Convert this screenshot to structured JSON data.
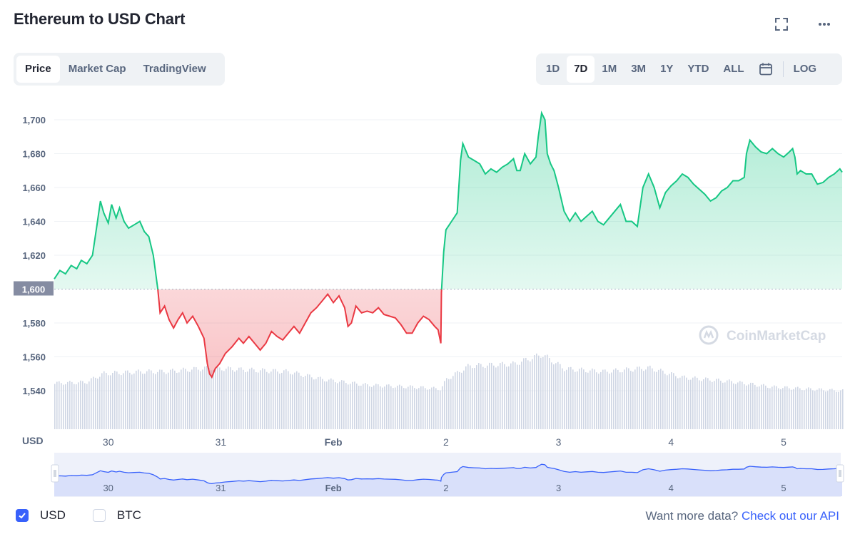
{
  "header": {
    "title": "Ethereum to USD Chart",
    "fullscreen_icon": "expand-icon",
    "more_icon": "more-dots-icon"
  },
  "view_tabs": [
    {
      "label": "Price",
      "active": true
    },
    {
      "label": "Market Cap",
      "active": false
    },
    {
      "label": "TradingView",
      "active": false
    }
  ],
  "ranges": [
    {
      "label": "1D",
      "active": false
    },
    {
      "label": "7D",
      "active": true
    },
    {
      "label": "1M",
      "active": false
    },
    {
      "label": "3M",
      "active": false
    },
    {
      "label": "1Y",
      "active": false
    },
    {
      "label": "YTD",
      "active": false
    },
    {
      "label": "ALL",
      "active": false
    }
  ],
  "calendar_icon": "calendar-icon",
  "log_label": "LOG",
  "watermark": "CoinMarketCap",
  "footer": {
    "usd_label": "USD",
    "usd_checked": true,
    "btc_label": "BTC",
    "btc_checked": false,
    "more_data_text": "Want more data?",
    "api_link": "Check out our API"
  },
  "colors": {
    "up": "#16c784",
    "down": "#ea3943",
    "accent": "#3861fb",
    "volume": "#cfd6e4"
  },
  "chart_data": {
    "type": "line",
    "currency_label": "USD",
    "baseline": 1600,
    "baseline_label": "1,600",
    "ylim": [
      1525,
      1711
    ],
    "y_ticks": [
      1540,
      1560,
      1580,
      1600,
      1620,
      1640,
      1660,
      1680,
      1700
    ],
    "y_tick_labels": [
      "1,540",
      "1,560",
      "1,580",
      "1,600",
      "1,620",
      "1,640",
      "1,660",
      "1,680",
      "1,700"
    ],
    "xlim": [
      29.52,
      36.52
    ],
    "x_ticks": [
      {
        "x": 30,
        "label": "30"
      },
      {
        "x": 31,
        "label": "31"
      },
      {
        "x": 32,
        "label": "Feb"
      },
      {
        "x": 33,
        "label": "2"
      },
      {
        "x": 34,
        "label": "3"
      },
      {
        "x": 35,
        "label": "4"
      },
      {
        "x": 36,
        "label": "5"
      }
    ],
    "price": [
      [
        29.52,
        1606
      ],
      [
        29.57,
        1611
      ],
      [
        29.62,
        1609
      ],
      [
        29.67,
        1614
      ],
      [
        29.72,
        1612
      ],
      [
        29.76,
        1617
      ],
      [
        29.81,
        1615
      ],
      [
        29.86,
        1620
      ],
      [
        29.9,
        1638
      ],
      [
        29.93,
        1652
      ],
      [
        29.96,
        1645
      ],
      [
        30.0,
        1639
      ],
      [
        30.03,
        1650
      ],
      [
        30.07,
        1642
      ],
      [
        30.1,
        1648
      ],
      [
        30.14,
        1640
      ],
      [
        30.18,
        1636
      ],
      [
        30.23,
        1638
      ],
      [
        30.28,
        1640
      ],
      [
        30.32,
        1634
      ],
      [
        30.36,
        1631
      ],
      [
        30.4,
        1620
      ],
      [
        30.44,
        1600
      ],
      [
        30.46,
        1586
      ],
      [
        30.5,
        1590
      ],
      [
        30.54,
        1582
      ],
      [
        30.58,
        1577
      ],
      [
        30.62,
        1582
      ],
      [
        30.66,
        1586
      ],
      [
        30.7,
        1580
      ],
      [
        30.75,
        1584
      ],
      [
        30.8,
        1578
      ],
      [
        30.85,
        1571
      ],
      [
        30.88,
        1556
      ],
      [
        30.9,
        1550
      ],
      [
        30.92,
        1548
      ],
      [
        30.95,
        1553
      ],
      [
        30.99,
        1556
      ],
      [
        31.04,
        1562
      ],
      [
        31.1,
        1566
      ],
      [
        31.16,
        1571
      ],
      [
        31.2,
        1568
      ],
      [
        31.25,
        1572
      ],
      [
        31.3,
        1568
      ],
      [
        31.35,
        1564
      ],
      [
        31.4,
        1568
      ],
      [
        31.45,
        1575
      ],
      [
        31.5,
        1572
      ],
      [
        31.55,
        1570
      ],
      [
        31.6,
        1574
      ],
      [
        31.65,
        1578
      ],
      [
        31.7,
        1574
      ],
      [
        31.75,
        1580
      ],
      [
        31.8,
        1586
      ],
      [
        31.85,
        1589
      ],
      [
        31.9,
        1593
      ],
      [
        31.95,
        1597
      ],
      [
        32.0,
        1592
      ],
      [
        32.05,
        1596
      ],
      [
        32.1,
        1589
      ],
      [
        32.13,
        1578
      ],
      [
        32.16,
        1580
      ],
      [
        32.2,
        1590
      ],
      [
        32.25,
        1586
      ],
      [
        32.3,
        1587
      ],
      [
        32.35,
        1586
      ],
      [
        32.4,
        1589
      ],
      [
        32.45,
        1585
      ],
      [
        32.5,
        1584
      ],
      [
        32.55,
        1583
      ],
      [
        32.6,
        1579
      ],
      [
        32.65,
        1574
      ],
      [
        32.7,
        1574
      ],
      [
        32.75,
        1580
      ],
      [
        32.8,
        1584
      ],
      [
        32.85,
        1582
      ],
      [
        32.9,
        1578
      ],
      [
        32.93,
        1576
      ],
      [
        32.955,
        1568
      ],
      [
        32.96,
        1598
      ],
      [
        32.98,
        1622
      ],
      [
        33.0,
        1635
      ],
      [
        33.05,
        1640
      ],
      [
        33.1,
        1645
      ],
      [
        33.13,
        1676
      ],
      [
        33.15,
        1686
      ],
      [
        33.2,
        1678
      ],
      [
        33.25,
        1676
      ],
      [
        33.3,
        1674
      ],
      [
        33.35,
        1668
      ],
      [
        33.4,
        1671
      ],
      [
        33.45,
        1669
      ],
      [
        33.5,
        1672
      ],
      [
        33.55,
        1674
      ],
      [
        33.6,
        1677
      ],
      [
        33.63,
        1670
      ],
      [
        33.66,
        1670
      ],
      [
        33.7,
        1680
      ],
      [
        33.75,
        1674
      ],
      [
        33.8,
        1678
      ],
      [
        33.82,
        1690
      ],
      [
        33.85,
        1704
      ],
      [
        33.88,
        1700
      ],
      [
        33.9,
        1680
      ],
      [
        33.93,
        1674
      ],
      [
        33.96,
        1670
      ],
      [
        34.0,
        1660
      ],
      [
        34.05,
        1646
      ],
      [
        34.1,
        1640
      ],
      [
        34.15,
        1645
      ],
      [
        34.2,
        1640
      ],
      [
        34.25,
        1643
      ],
      [
        34.3,
        1646
      ],
      [
        34.35,
        1640
      ],
      [
        34.4,
        1638
      ],
      [
        34.45,
        1642
      ],
      [
        34.5,
        1646
      ],
      [
        34.55,
        1650
      ],
      [
        34.6,
        1640
      ],
      [
        34.65,
        1640
      ],
      [
        34.7,
        1637
      ],
      [
        34.75,
        1660
      ],
      [
        34.8,
        1668
      ],
      [
        34.85,
        1660
      ],
      [
        34.9,
        1648
      ],
      [
        34.95,
        1657
      ],
      [
        35.0,
        1661
      ],
      [
        35.05,
        1664
      ],
      [
        35.1,
        1668
      ],
      [
        35.15,
        1666
      ],
      [
        35.2,
        1662
      ],
      [
        35.25,
        1659
      ],
      [
        35.3,
        1656
      ],
      [
        35.35,
        1652
      ],
      [
        35.4,
        1654
      ],
      [
        35.45,
        1658
      ],
      [
        35.5,
        1660
      ],
      [
        35.55,
        1664
      ],
      [
        35.6,
        1664
      ],
      [
        35.65,
        1666
      ],
      [
        35.67,
        1680
      ],
      [
        35.7,
        1688
      ],
      [
        35.75,
        1684
      ],
      [
        35.8,
        1681
      ],
      [
        35.85,
        1680
      ],
      [
        35.9,
        1683
      ],
      [
        35.95,
        1680
      ],
      [
        36.0,
        1678
      ],
      [
        36.05,
        1681
      ],
      [
        36.08,
        1683
      ],
      [
        36.1,
        1678
      ],
      [
        36.12,
        1668
      ],
      [
        36.15,
        1670
      ],
      [
        36.2,
        1668
      ],
      [
        36.25,
        1668
      ],
      [
        36.3,
        1662
      ],
      [
        36.35,
        1663
      ],
      [
        36.4,
        1666
      ],
      [
        36.45,
        1668
      ],
      [
        36.5,
        1671
      ],
      [
        36.52,
        1669
      ]
    ],
    "volume_relative": [
      [
        29.52,
        0.48
      ],
      [
        29.8,
        0.49
      ],
      [
        29.95,
        0.58
      ],
      [
        30.3,
        0.6
      ],
      [
        30.5,
        0.6
      ],
      [
        30.9,
        0.64
      ],
      [
        31.2,
        0.62
      ],
      [
        31.6,
        0.6
      ],
      [
        31.9,
        0.52
      ],
      [
        32.3,
        0.46
      ],
      [
        32.7,
        0.44
      ],
      [
        32.95,
        0.42
      ],
      [
        33.0,
        0.52
      ],
      [
        33.2,
        0.66
      ],
      [
        33.6,
        0.68
      ],
      [
        33.85,
        0.78
      ],
      [
        34.05,
        0.63
      ],
      [
        34.4,
        0.6
      ],
      [
        34.8,
        0.64
      ],
      [
        35.1,
        0.54
      ],
      [
        35.5,
        0.5
      ],
      [
        35.9,
        0.44
      ],
      [
        36.2,
        0.42
      ],
      [
        36.52,
        0.4
      ]
    ]
  }
}
